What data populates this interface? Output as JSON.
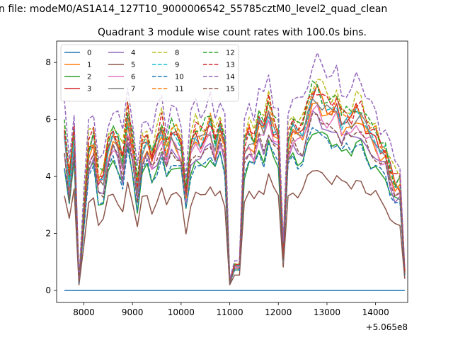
{
  "figure": {
    "suptitle": "n file: modeM0/AS1A14_127T10_9000006542_55785cztM0_level2_quad_clean"
  },
  "chart_data": {
    "type": "line",
    "title": "Quadrant 3 module wise count rates with 100.0s bins.",
    "xlabel": "",
    "ylabel": "",
    "x_offset_label": "+5.065e8",
    "xlim": [
      7440,
      14660
    ],
    "ylim": [
      -0.42,
      8.75
    ],
    "xticks": [
      8000,
      9000,
      10000,
      11000,
      12000,
      13000,
      14000
    ],
    "yticks": [
      0,
      2,
      4,
      6,
      8
    ],
    "grid": false,
    "legend": {
      "placement": "upper-left",
      "columns": 4
    },
    "x": [
      7600,
      7700,
      7800,
      7900,
      8000,
      8100,
      8200,
      8300,
      8400,
      8500,
      8600,
      8700,
      8800,
      8900,
      9000,
      9100,
      9200,
      9300,
      9400,
      9500,
      9600,
      9700,
      9800,
      9900,
      10000,
      10100,
      10200,
      10300,
      10400,
      10500,
      10600,
      10700,
      10800,
      10900,
      11000,
      11100,
      11200,
      11300,
      11400,
      11500,
      11600,
      11700,
      11800,
      11900,
      12000,
      12100,
      12200,
      12300,
      12400,
      12500,
      12600,
      12700,
      12800,
      12900,
      13000,
      13100,
      13200,
      13300,
      13400,
      13500,
      13600,
      13700,
      13800,
      13900,
      14000,
      14100,
      14200,
      14300,
      14400,
      14500,
      14600
    ],
    "base_profile": [
      5.0,
      3.5,
      5.0,
      0.3,
      2.5,
      4.5,
      4.8,
      3.5,
      3.6,
      4.6,
      5.0,
      4.7,
      4.1,
      5.5,
      4.6,
      3.3,
      4.6,
      4.8,
      4.2,
      4.7,
      5.2,
      4.4,
      5.0,
      4.9,
      4.6,
      3.1,
      4.6,
      5.0,
      4.8,
      5.0,
      5.3,
      4.7,
      5.2,
      4.6,
      0.3,
      0.8,
      0.8,
      4.6,
      5.0,
      4.7,
      5.4,
      5.1,
      5.8,
      5.2,
      5.0,
      1.2,
      4.8,
      5.2,
      5.0,
      5.1,
      5.7,
      6.2,
      6.3,
      6.0,
      5.8,
      5.7,
      5.9,
      5.4,
      5.5,
      5.4,
      5.7,
      5.6,
      5.2,
      5.0,
      4.9,
      4.5,
      4.4,
      3.8,
      3.4,
      3.4,
      0.6
    ],
    "series": [
      {
        "name": "0",
        "color": "#1f77b4",
        "dash": "solid",
        "level": 0.0,
        "values": [
          0,
          0,
          0,
          0,
          0,
          0,
          0,
          0,
          0,
          0,
          0,
          0,
          0,
          0,
          0,
          0,
          0,
          0,
          0,
          0,
          0,
          0,
          0,
          0,
          0,
          0,
          0,
          0,
          0,
          0,
          0,
          0,
          0,
          0,
          0,
          0,
          0,
          0,
          0,
          0,
          0,
          0,
          0,
          0,
          0,
          0,
          0,
          0,
          0,
          0,
          0,
          0,
          0,
          0,
          0,
          0,
          0,
          0,
          0,
          0,
          0,
          0,
          0,
          0,
          0,
          0,
          0,
          0,
          0,
          0,
          0
        ]
      },
      {
        "name": "1",
        "color": "#ff7f0e",
        "dash": "solid",
        "level": 1.05
      },
      {
        "name": "2",
        "color": "#2ca02c",
        "dash": "solid",
        "level": 0.9
      },
      {
        "name": "3",
        "color": "#d62728",
        "dash": "solid",
        "level": 1.1
      },
      {
        "name": "4",
        "color": "#9467bd",
        "dash": "solid",
        "level": 0.97
      },
      {
        "name": "5",
        "color": "#8c564b",
        "dash": "solid",
        "level": 0.68
      },
      {
        "name": "6",
        "color": "#e377c2",
        "dash": "solid",
        "level": 1.02
      },
      {
        "name": "7",
        "color": "#7f7f7f",
        "dash": "solid",
        "level": 1.08
      },
      {
        "name": "8",
        "color": "#bcbd22",
        "dash": "dashed",
        "level": 1.18
      },
      {
        "name": "9",
        "color": "#17becf",
        "dash": "dashed",
        "level": 1.1
      },
      {
        "name": "10",
        "color": "#1f77b4",
        "dash": "dashed",
        "level": 0.9
      },
      {
        "name": "11",
        "color": "#ff7f0e",
        "dash": "dashed",
        "level": 1.12
      },
      {
        "name": "12",
        "color": "#2ca02c",
        "dash": "dashed",
        "level": 1.15
      },
      {
        "name": "13",
        "color": "#d62728",
        "dash": "dashed",
        "level": 1.14
      },
      {
        "name": "14",
        "color": "#9467bd",
        "dash": "dashed",
        "level": 1.3
      },
      {
        "name": "15",
        "color": "#8c564b",
        "dash": "dashed",
        "level": 0.98
      }
    ]
  }
}
